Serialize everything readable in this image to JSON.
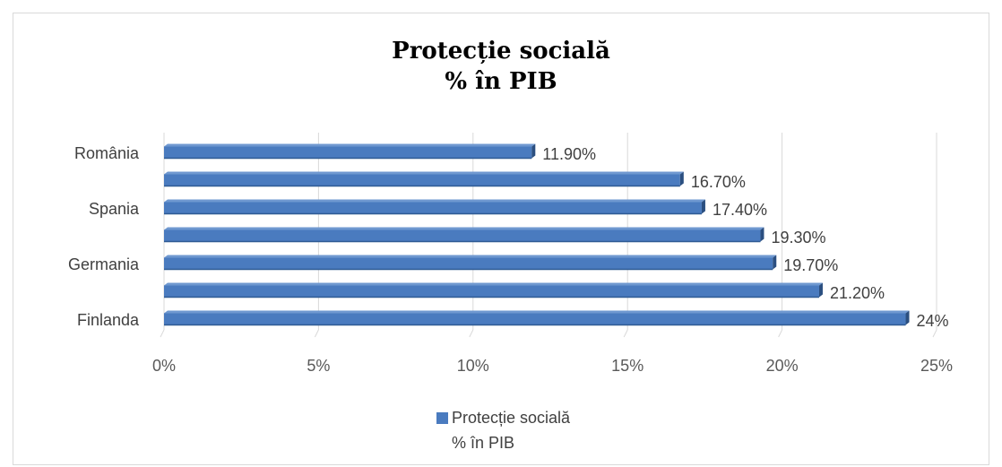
{
  "chart_data": {
    "type": "bar",
    "orientation": "horizontal",
    "title": [
      "Protecție socială",
      "% în PIB"
    ],
    "categories": [
      "România",
      "",
      "Spania",
      "",
      "Germania",
      "",
      "Finlanda"
    ],
    "series": [
      {
        "name": "Protecție socială\n% în PIB",
        "values": [
          11.9,
          16.7,
          17.4,
          19.3,
          19.7,
          21.2,
          24.0
        ],
        "labels": [
          "11.90%",
          "16.70%",
          "17.40%",
          "19.30%",
          "19.70%",
          "21.20%",
          "24%"
        ]
      }
    ],
    "xlim": [
      0,
      25
    ],
    "xticks": [
      "0%",
      "5%",
      "10%",
      "15%",
      "20%",
      "25%"
    ],
    "grid": true,
    "legend_position": "bottom",
    "bar_color": "#4a7bbf"
  },
  "legend": {
    "line1": "Protecție socială",
    "line2": "% în PIB"
  }
}
